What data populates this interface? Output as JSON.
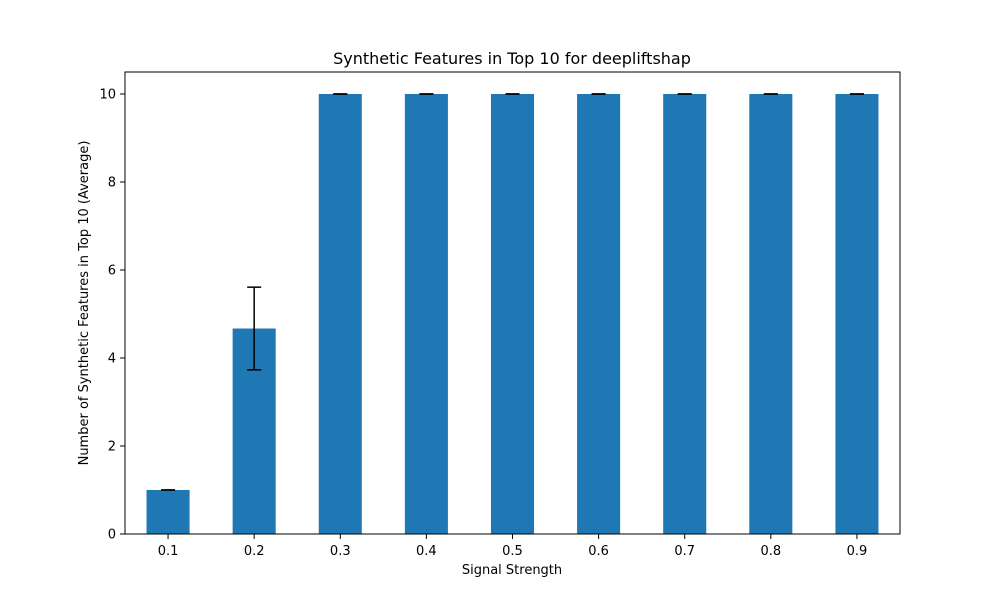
{
  "colors": {
    "bar": "#1f77b4",
    "error_bar": "#000000",
    "axis": "#000000",
    "background": "#ffffff"
  },
  "chart_data": {
    "type": "bar",
    "title": "Synthetic Features in Top 10 for deepliftshap",
    "xlabel": "Signal Strength",
    "ylabel": "Number of Synthetic Features in Top 10 (Average)",
    "categories": [
      "0.1",
      "0.2",
      "0.3",
      "0.4",
      "0.5",
      "0.6",
      "0.7",
      "0.8",
      "0.9"
    ],
    "values": [
      1.0,
      4.67,
      10.0,
      10.0,
      10.0,
      10.0,
      10.0,
      10.0,
      10.0
    ],
    "errors": [
      0.0,
      0.94,
      0.0,
      0.0,
      0.0,
      0.0,
      0.0,
      0.0,
      0.0
    ],
    "ylim": [
      0,
      10.5
    ],
    "yticks": [
      0,
      2,
      4,
      6,
      8,
      10
    ],
    "grid": false,
    "legend": "none"
  }
}
